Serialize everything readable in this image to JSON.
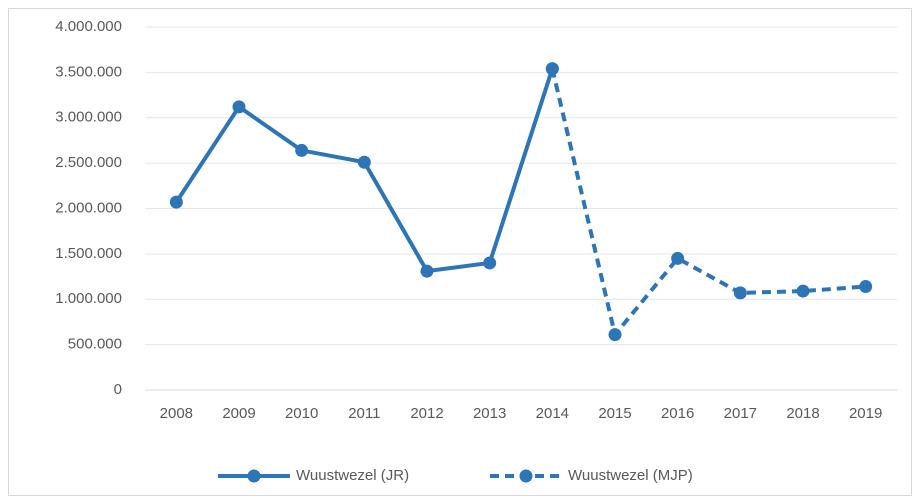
{
  "chart_data": {
    "type": "line",
    "categories": [
      "2008",
      "2009",
      "2010",
      "2011",
      "2012",
      "2013",
      "2014",
      "2015",
      "2016",
      "2017",
      "2018",
      "2019"
    ],
    "series": [
      {
        "name": "Wuustwezel (JR)",
        "color": "#2e75b6",
        "line_style": "solid",
        "values": [
          2070000,
          3120000,
          2640000,
          2510000,
          1310000,
          1400000,
          3540000,
          null,
          null,
          null,
          null,
          null
        ]
      },
      {
        "name": "Wuustwezel (MJP)",
        "color": "#2e75b6",
        "line_style": "dashed",
        "values": [
          null,
          null,
          null,
          null,
          null,
          null,
          3540000,
          610000,
          1450000,
          1070000,
          1090000,
          1140000
        ]
      }
    ],
    "ylim": [
      0,
      4000000
    ],
    "yticks": [
      0,
      {
        "value": 500000,
        "label": "500.000"
      },
      {
        "value": 1000000,
        "label": "1.000.000"
      },
      {
        "value": 1500000,
        "label": "1.500.000"
      },
      {
        "value": 2000000,
        "label": "2.000.000"
      },
      {
        "value": 2500000,
        "label": "2.500.000"
      },
      {
        "value": 3000000,
        "label": "3.000.000"
      },
      {
        "value": 3500000,
        "label": "3.500.000"
      },
      {
        "value": 4000000,
        "label": "4.000.000"
      }
    ],
    "grid": true,
    "legend": "bottom"
  }
}
